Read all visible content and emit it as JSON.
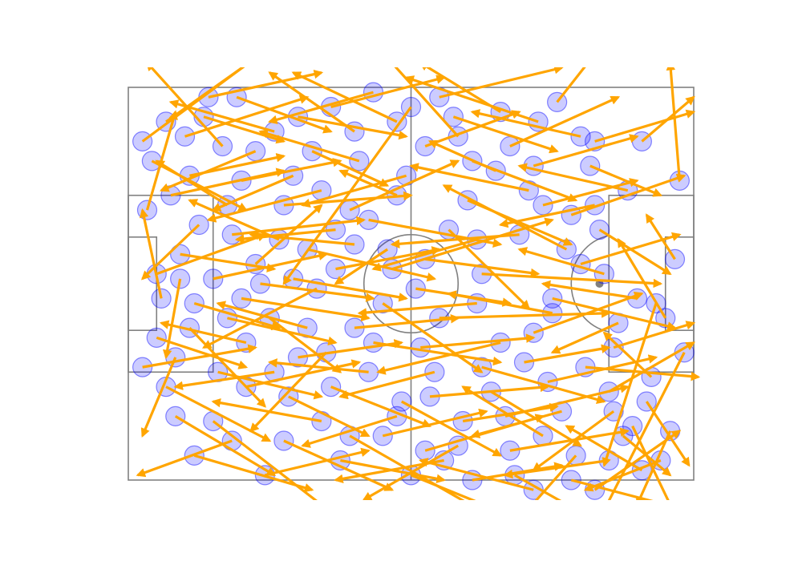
{
  "chart_data": {
    "type": "scatter",
    "title": "",
    "xlabel": "",
    "ylabel": "",
    "xlim": [
      0,
      120
    ],
    "ylim": [
      0,
      80
    ],
    "grid": false,
    "axes_visible": false,
    "colors": {
      "pitch_lines": "#808080",
      "pass_arrows": "#ffa500",
      "pass_start_markers": "#0000ff",
      "background": "#ffffff"
    },
    "passes": [
      [
        8,
        7,
        30,
        -8
      ],
      [
        20,
        12,
        4,
        -5
      ],
      [
        35,
        18,
        18,
        25
      ],
      [
        48,
        9,
        30,
        -3
      ],
      [
        60,
        4,
        33,
        40
      ],
      [
        73,
        15,
        95,
        23
      ],
      [
        85,
        21,
        60,
        16
      ],
      [
        100,
        29,
        115,
        38
      ],
      [
        112,
        44,
        101,
        77
      ],
      [
        93,
        33,
        67,
        20
      ],
      [
        68,
        29,
        85,
        45
      ],
      [
        54,
        44,
        75,
        58
      ],
      [
        40,
        41,
        16,
        53
      ],
      [
        27,
        36,
        41,
        24
      ],
      [
        10,
        55,
        3,
        71
      ],
      [
        18,
        68,
        45,
        88
      ],
      [
        34,
        63,
        51,
        71
      ],
      [
        47,
        71,
        78,
        88
      ],
      [
        63,
        74,
        88,
        67
      ],
      [
        80,
        67,
        106,
        61
      ],
      [
        102,
        62,
        120,
        52
      ],
      [
        117,
        19,
        115,
        -5
      ],
      [
        99,
        11,
        120,
        5
      ],
      [
        87,
        7,
        59,
        -2
      ],
      [
        70,
        10,
        55,
        -6
      ],
      [
        57,
        22,
        45,
        17
      ],
      [
        44,
        29,
        23,
        31
      ],
      [
        30,
        47,
        45,
        58
      ],
      [
        14,
        44,
        32,
        49
      ],
      [
        6,
        38,
        29,
        30
      ],
      [
        4,
        25,
        10,
        5
      ],
      [
        13,
        18,
        33,
        14
      ],
      [
        22,
        30,
        50,
        27
      ],
      [
        38,
        33,
        65,
        39
      ],
      [
        56,
        37,
        90,
        27
      ],
      [
        75,
        38,
        113,
        40
      ],
      [
        90,
        43,
        116,
        49
      ],
      [
        104,
        48,
        90,
        54
      ],
      [
        118,
        54,
        100,
        88
      ],
      [
        107,
        69,
        117,
        89
      ],
      [
        95,
        75,
        83,
        88
      ],
      [
        82,
        79,
        106,
        92
      ],
      [
        70,
        73,
        50,
        84
      ],
      [
        58,
        64,
        79,
        75
      ],
      [
        42,
        54,
        26,
        70
      ],
      [
        25,
        52,
        7,
        48
      ],
      [
        11,
        34,
        31,
        37
      ],
      [
        21,
        24,
        6,
        15
      ],
      [
        33,
        24,
        60,
        22
      ],
      [
        51,
        27,
        79,
        32
      ],
      [
        66,
        47,
        102,
        46
      ],
      [
        86,
        50,
        109,
        42
      ],
      [
        98,
        16,
        113,
        22
      ],
      [
        88,
        24,
        108,
        19
      ],
      [
        78,
        17,
        64,
        11
      ],
      [
        63,
        12,
        83,
        5
      ],
      [
        49,
        15,
        28,
        9
      ],
      [
        36,
        6,
        59,
        10
      ],
      [
        23,
        2,
        43,
        9
      ],
      [
        12,
        10,
        38,
        2
      ],
      [
        5,
        15,
        25,
        25
      ],
      [
        15,
        28,
        3,
        39
      ],
      [
        28,
        40,
        52,
        43
      ],
      [
        44,
        37,
        66,
        33
      ],
      [
        61,
        41,
        81,
        44
      ],
      [
        74,
        44,
        49,
        46
      ],
      [
        84,
        56,
        102,
        53
      ],
      [
        97,
        57,
        121,
        59
      ],
      [
        110,
        64,
        119,
        77
      ],
      [
        115,
        70,
        108,
        85
      ],
      [
        102,
        76,
        80,
        79
      ],
      [
        88,
        71,
        71,
        61
      ],
      [
        77,
        62,
        96,
        73
      ],
      [
        65,
        58,
        45,
        63
      ],
      [
        52,
        52,
        79,
        56
      ],
      [
        38,
        49,
        19,
        44
      ],
      [
        24,
        43,
        51,
        47
      ],
      [
        13,
        49,
        29,
        65
      ],
      [
        8,
        61,
        30,
        72
      ],
      [
        19,
        58,
        41,
        63
      ],
      [
        31,
        58,
        10,
        61
      ],
      [
        43,
        61,
        64,
        69
      ],
      [
        57,
        67,
        37,
        73
      ],
      [
        71,
        68,
        91,
        65
      ],
      [
        92,
        66,
        73,
        71
      ],
      [
        105,
        71,
        115,
        79
      ],
      [
        111,
        59,
        101,
        50
      ],
      [
        101,
        38,
        83,
        33
      ],
      [
        94,
        26,
        118,
        18
      ],
      [
        109,
        11,
        120,
        2
      ],
      [
        91,
        3,
        100,
        -8
      ],
      [
        79,
        5,
        62,
        -5
      ],
      [
        66,
        2,
        92,
        -4
      ],
      [
        52,
        1,
        30,
        7
      ],
      [
        39,
        13,
        55,
        20
      ],
      [
        27,
        13,
        7,
        21
      ],
      [
        16,
        6,
        33,
        11
      ],
      [
        9,
        22,
        33,
        17
      ],
      [
        24,
        19,
        45,
        15
      ],
      [
        41,
        21,
        17,
        27
      ],
      [
        55,
        33,
        44,
        40
      ],
      [
        48,
        49,
        70,
        47
      ],
      [
        62,
        53,
        86,
        51
      ],
      [
        79,
        52,
        53,
        58
      ],
      [
        89,
        60,
        112,
        55
      ],
      [
        103,
        66,
        86,
        78
      ],
      [
        113,
        76,
        97,
        82
      ],
      [
        99,
        82,
        117,
        70
      ],
      [
        86,
        82,
        62,
        76
      ],
      [
        73,
        80,
        92,
        77
      ],
      [
        60,
        79,
        78,
        86
      ],
      [
        45,
        76,
        67,
        80
      ],
      [
        33,
        72,
        56,
        82
      ],
      [
        22,
        72,
        2,
        79
      ],
      [
        10,
        67,
        31,
        79
      ],
      [
        3,
        57,
        27,
        53
      ],
      [
        7,
        43,
        3,
        25
      ],
      [
        18,
        39,
        42,
        34
      ],
      [
        32,
        31,
        13,
        23
      ],
      [
        47,
        25,
        70,
        15
      ],
      [
        59,
        18,
        37,
        24
      ],
      [
        72,
        23,
        94,
        32
      ],
      [
        83,
        30,
        56,
        32
      ],
      [
        96,
        36,
        117,
        30
      ],
      [
        108,
        43,
        88,
        40
      ],
      [
        116,
        35,
        110,
        26
      ],
      [
        106,
        21,
        83,
        16
      ],
      [
        96,
        10,
        73,
        5
      ],
      [
        81,
        12,
        104,
        2
      ],
      [
        69,
        6,
        91,
        13
      ],
      [
        57,
        7,
        35,
        -3
      ],
      [
        43,
        4,
        67,
        -2
      ],
      [
        31,
        9,
        9,
        3
      ],
      [
        17,
        2,
        41,
        -3
      ],
      [
        3,
        11,
        27,
        -6
      ],
      [
        11,
        39,
        8,
        55
      ],
      [
        25,
        61,
        49,
        56
      ],
      [
        36,
        55,
        58,
        52
      ],
      [
        51,
        58,
        30,
        56
      ],
      [
        64,
        63,
        89,
        61
      ],
      [
        75,
        57,
        101,
        64
      ],
      [
        90,
        46,
        68,
        42
      ],
      [
        103,
        53,
        120,
        48
      ],
      [
        114,
        47,
        104,
        31
      ],
      [
        99,
        24,
        79,
        28
      ],
      [
        86,
        16,
        108,
        10
      ],
      [
        74,
        31,
        52,
        37
      ],
      [
        63,
        35,
        87,
        38
      ],
      [
        48,
        32,
        26,
        30
      ],
      [
        35,
        39,
        59,
        43
      ],
      [
        21,
        47,
        44,
        52
      ],
      [
        6,
        51,
        25,
        57
      ],
      [
        14,
        75,
        39,
        82
      ],
      [
        29,
        79,
        51,
        74
      ],
      [
        41,
        68,
        18,
        64
      ],
      [
        54,
        71,
        76,
        66
      ],
      [
        67,
        76,
        44,
        80
      ],
      [
        81,
        74,
        106,
        70
      ],
      [
        94,
        80,
        118,
        86
      ],
      [
        109,
        78,
        93,
        69
      ]
    ]
  },
  "figure": {
    "pitch_length": 120,
    "pitch_width": 80,
    "penalty_spot": [
      100,
      40
    ],
    "centre_circle_radius": 10
  }
}
